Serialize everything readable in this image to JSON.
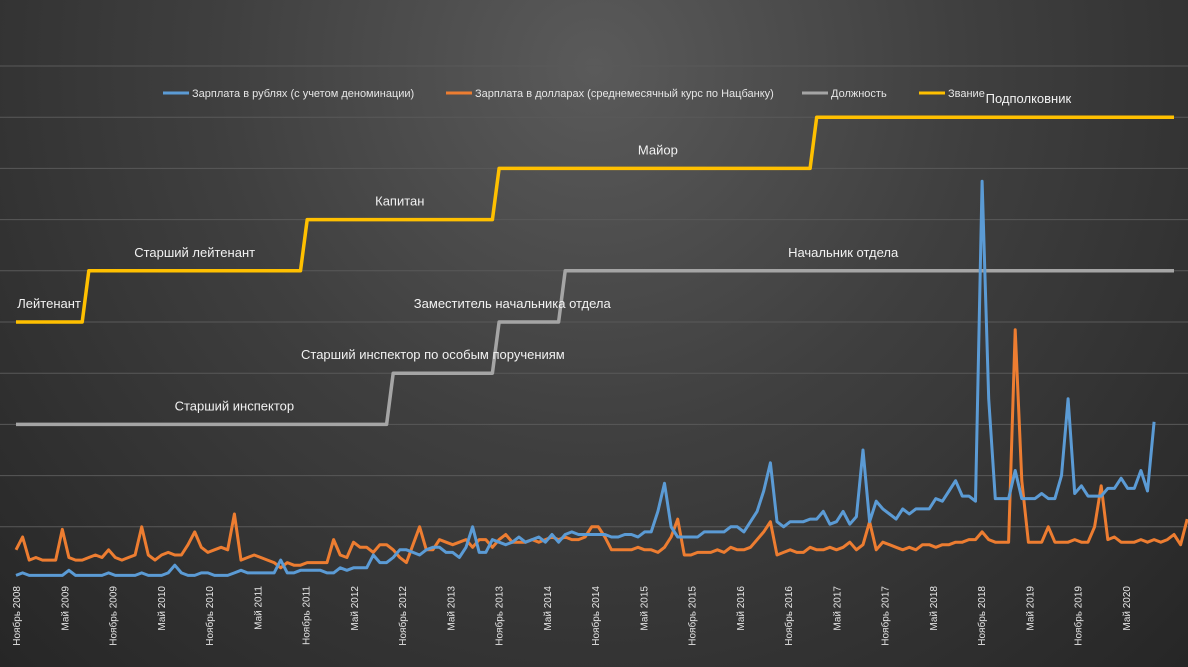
{
  "chart_data": {
    "type": "line",
    "title": "",
    "xlabel": "",
    "ylabel": "",
    "ylim": [
      0,
      10
    ],
    "grid": "horizontal",
    "legend_position": "top",
    "colors": {
      "salary_rub": "#5b9bd5",
      "salary_usd": "#ed7d31",
      "position": "#a5a5a5",
      "rank": "#ffc000",
      "grid": "#595959"
    },
    "x_ticks": [
      "Ноябрь 2008",
      "Май 2009",
      "Ноябрь 2009",
      "Май 2010",
      "Ноябрь 2010",
      "Май 2011",
      "Ноябрь 2011",
      "Май 2012",
      "Ноябрь 2012",
      "Май 2013",
      "Ноябрь 2013",
      "Май 2014",
      "Ноябрь 2014",
      "Май 2015",
      "Ноябрь 2015",
      "Май 2016",
      "Ноябрь 2016",
      "Май 2017",
      "Ноябрь 2017",
      "Май 2018",
      "Ноябрь 2018",
      "Май 2019",
      "Ноябрь 2019",
      "Май 2020"
    ],
    "series": [
      {
        "key": "salary_rub",
        "name": "Зарплата в рублях (с учетом деноминации)",
        "values": [
          0.05,
          0.1,
          0.05,
          0.05,
          0.05,
          0.05,
          0.05,
          0.05,
          0.15,
          0.05,
          0.05,
          0.05,
          0.05,
          0.05,
          0.1,
          0.05,
          0.05,
          0.05,
          0.05,
          0.1,
          0.05,
          0.05,
          0.05,
          0.1,
          0.25,
          0.1,
          0.05,
          0.05,
          0.1,
          0.1,
          0.05,
          0.05,
          0.05,
          0.1,
          0.15,
          0.1,
          0.1,
          0.1,
          0.1,
          0.1,
          0.35,
          0.1,
          0.1,
          0.15,
          0.15,
          0.15,
          0.15,
          0.1,
          0.1,
          0.2,
          0.15,
          0.2,
          0.2,
          0.2,
          0.45,
          0.3,
          0.3,
          0.4,
          0.55,
          0.55,
          0.5,
          0.45,
          0.55,
          0.6,
          0.6,
          0.5,
          0.5,
          0.4,
          0.6,
          1.0,
          0.5,
          0.5,
          0.75,
          0.7,
          0.65,
          0.7,
          0.8,
          0.7,
          0.75,
          0.8,
          0.7,
          0.85,
          0.7,
          0.85,
          0.9,
          0.85,
          0.85,
          0.85,
          0.85,
          0.85,
          0.8,
          0.8,
          0.85,
          0.85,
          0.8,
          0.9,
          0.9,
          1.3,
          1.85,
          1.0,
          0.8,
          0.8,
          0.8,
          0.8,
          0.9,
          0.9,
          0.9,
          0.9,
          1.0,
          1.0,
          0.9,
          1.1,
          1.3,
          1.7,
          2.25,
          1.1,
          1.0,
          1.1,
          1.1,
          1.1,
          1.15,
          1.15,
          1.3,
          1.05,
          1.1,
          1.3,
          1.05,
          1.2,
          2.5,
          1.1,
          1.5,
          1.35,
          1.25,
          1.15,
          1.35,
          1.25,
          1.35,
          1.35,
          1.35,
          1.55,
          1.5,
          1.7,
          1.9,
          1.6,
          1.6,
          1.5,
          7.75,
          3.5,
          1.55,
          1.55,
          1.55,
          2.1,
          1.55,
          1.55,
          1.55,
          1.65,
          1.55,
          1.55,
          2.0,
          3.5,
          1.65,
          1.8,
          1.6,
          1.6,
          1.6,
          1.75,
          1.75,
          1.95,
          1.75,
          1.75,
          2.1,
          1.7,
          3.05
        ]
      },
      {
        "key": "salary_usd",
        "name": "Зарплата в долларах (среднемесячный курс по Нацбанку)",
        "values": [
          0.55,
          0.8,
          0.35,
          0.4,
          0.35,
          0.35,
          0.35,
          0.95,
          0.4,
          0.35,
          0.35,
          0.4,
          0.45,
          0.4,
          0.55,
          0.4,
          0.35,
          0.4,
          0.45,
          1.0,
          0.45,
          0.35,
          0.45,
          0.5,
          0.45,
          0.45,
          0.65,
          0.9,
          0.6,
          0.5,
          0.55,
          0.6,
          0.55,
          1.25,
          0.35,
          0.4,
          0.45,
          0.4,
          0.35,
          0.3,
          0.2,
          0.3,
          0.25,
          0.25,
          0.3,
          0.3,
          0.3,
          0.3,
          0.75,
          0.45,
          0.4,
          0.7,
          0.6,
          0.6,
          0.5,
          0.65,
          0.65,
          0.55,
          0.4,
          0.3,
          0.65,
          1.0,
          0.55,
          0.55,
          0.75,
          0.7,
          0.65,
          0.7,
          0.75,
          0.6,
          0.75,
          0.75,
          0.6,
          0.75,
          0.85,
          0.7,
          0.7,
          0.7,
          0.75,
          0.7,
          0.75,
          0.8,
          0.75,
          0.8,
          0.75,
          0.75,
          0.8,
          1.0,
          1.0,
          0.8,
          0.55,
          0.55,
          0.55,
          0.55,
          0.6,
          0.55,
          0.55,
          0.5,
          0.6,
          0.8,
          1.15,
          0.45,
          0.45,
          0.5,
          0.5,
          0.5,
          0.55,
          0.5,
          0.6,
          0.55,
          0.55,
          0.6,
          0.75,
          0.9,
          1.1,
          0.45,
          0.5,
          0.55,
          0.5,
          0.5,
          0.6,
          0.55,
          0.55,
          0.6,
          0.55,
          0.6,
          0.7,
          0.55,
          0.65,
          1.1,
          0.55,
          0.7,
          0.65,
          0.6,
          0.55,
          0.6,
          0.55,
          0.65,
          0.65,
          0.6,
          0.65,
          0.65,
          0.7,
          0.7,
          0.75,
          0.75,
          0.9,
          0.75,
          0.7,
          0.7,
          0.7,
          4.85,
          1.9,
          0.7,
          0.7,
          0.7,
          1.0,
          0.7,
          0.7,
          0.7,
          0.75,
          0.7,
          0.7,
          1.0,
          1.8,
          0.75,
          0.8,
          0.7,
          0.7,
          0.7,
          0.75,
          0.7,
          0.75,
          0.7,
          0.75,
          0.85,
          0.65,
          1.15
        ]
      },
      {
        "key": "position",
        "name": "Должность",
        "steps": [
          {
            "from": 0,
            "to": 56,
            "value": 3
          },
          {
            "from": 57,
            "to": 72,
            "value": 4
          },
          {
            "from": 73,
            "to": 82,
            "value": 5
          },
          {
            "from": 83,
            "to": 175,
            "value": 6
          }
        ]
      },
      {
        "key": "rank",
        "name": "Звание",
        "steps": [
          {
            "from": 0,
            "to": 10,
            "value": 5
          },
          {
            "from": 11,
            "to": 43,
            "value": 6
          },
          {
            "from": 44,
            "to": 72,
            "value": 7
          },
          {
            "from": 73,
            "to": 120,
            "value": 8
          },
          {
            "from": 121,
            "to": 175,
            "value": 9
          }
        ]
      }
    ],
    "annotations": {
      "rank": [
        {
          "label": "Лейтенант",
          "x": 5,
          "y": 5
        },
        {
          "label": "Старший лейтенант",
          "x": 27,
          "y": 6
        },
        {
          "label": "Капитан",
          "x": 58,
          "y": 7
        },
        {
          "label": "Майор",
          "x": 97,
          "y": 8
        },
        {
          "label": "Подполковник",
          "x": 153,
          "y": 9
        }
      ],
      "position": [
        {
          "label": "Старший инспектор",
          "x": 33,
          "y": 3
        },
        {
          "label": "Старший инспектор по особым поручениям",
          "x": 63,
          "y": 4
        },
        {
          "label": "Заместитель начальника отдела",
          "x": 75,
          "y": 5
        },
        {
          "label": "Начальник отдела",
          "x": 125,
          "y": 6
        }
      ]
    }
  }
}
